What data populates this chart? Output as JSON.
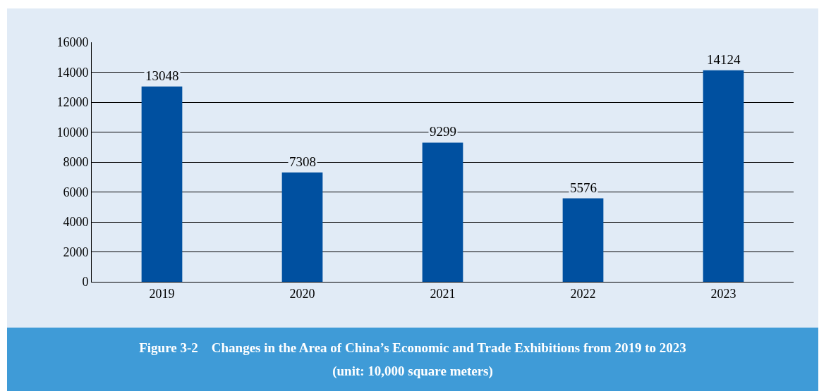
{
  "chart_data": {
    "type": "bar",
    "title": "Figure 3-2    Changes in the Area of China’s Economic and Trade Exhibitions from 2019 to 2023",
    "subtitle": "(unit: 10,000 square meters)",
    "categories": [
      "2019",
      "2020",
      "2021",
      "2022",
      "2023"
    ],
    "values": [
      13048,
      7308,
      9299,
      5576,
      14124
    ],
    "color": "#0050a0",
    "ylim": [
      0,
      16000
    ],
    "yticks": [
      0,
      2000,
      4000,
      6000,
      8000,
      10000,
      12000,
      14000,
      16000
    ],
    "grid": "y",
    "legend": false,
    "data_labels": true
  }
}
